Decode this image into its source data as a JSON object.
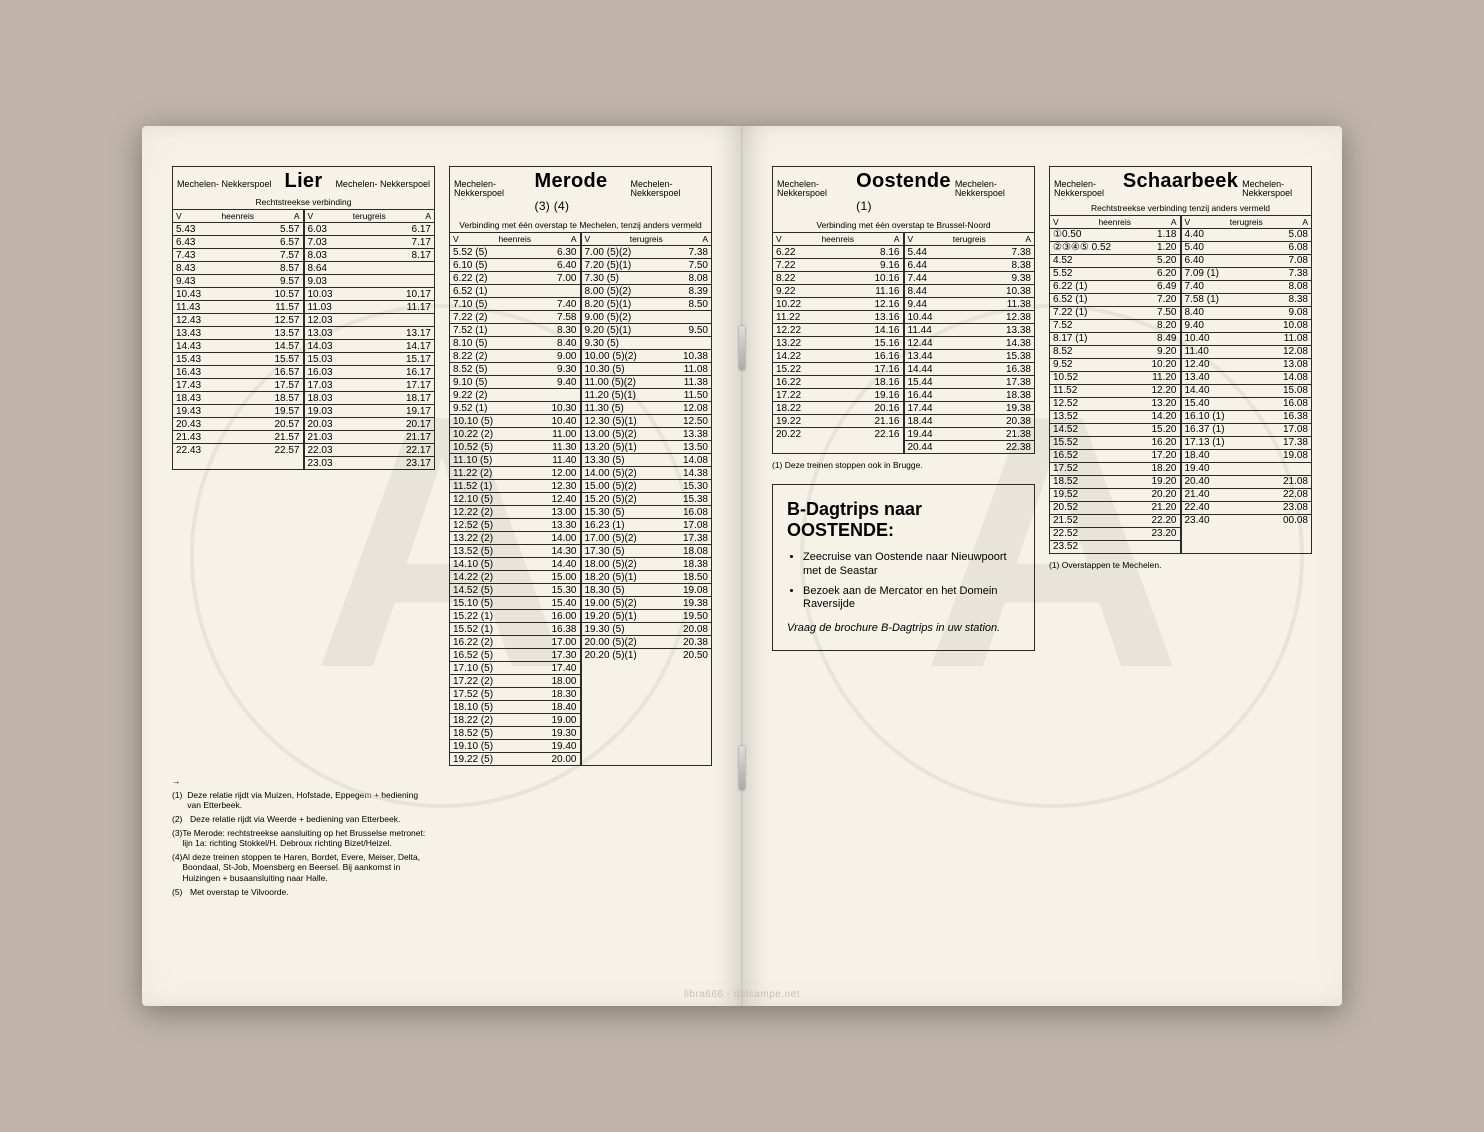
{
  "colors": {
    "page_bg": "#f6f2e8",
    "table_bg": "#bfb4a7",
    "ink": "#2a2a2a",
    "watermark": "#dcd7cc"
  },
  "typography": {
    "dest_font_size_pt": 20,
    "station_font_size_pt": 9,
    "subhead_font_size_pt": 8.5,
    "cell_font_size_pt": 10,
    "footnote_font_size_pt": 8.5,
    "promo_title_pt": 18,
    "promo_body_pt": 11
  },
  "station_label": "Mechelen-\nNekkerspoel",
  "labels": {
    "V": "V",
    "A": "A",
    "heen": "heenreis",
    "terug": "terugreis"
  },
  "watermark_letter": "A",
  "copyright": "libra666 - delcampe.net",
  "tables": {
    "lier": {
      "dest": "Lier",
      "suffix": "",
      "subhead": "Rechtstreekse verbinding",
      "heen": [
        [
          "5.43",
          "5.57"
        ],
        [
          "6.43",
          "6.57"
        ],
        [
          "7.43",
          "7.57"
        ],
        [
          "8.43",
          "8.57"
        ],
        [
          "9.43",
          "9.57"
        ],
        [
          "10.43",
          "10.57"
        ],
        [
          "11.43",
          "11.57"
        ],
        [
          "12.43",
          "12.57"
        ],
        [
          "13.43",
          "13.57"
        ],
        [
          "14.43",
          "14.57"
        ],
        [
          "15.43",
          "15.57"
        ],
        [
          "16.43",
          "16.57"
        ],
        [
          "17.43",
          "17.57"
        ],
        [
          "18.43",
          "18.57"
        ],
        [
          "19.43",
          "19.57"
        ],
        [
          "20.43",
          "20.57"
        ],
        [
          "21.43",
          "21.57"
        ],
        [
          "22.43",
          "22.57"
        ]
      ],
      "terug": [
        [
          "6.03",
          "6.17"
        ],
        [
          "7.03",
          "7.17"
        ],
        [
          "8.03",
          "8.17"
        ],
        [
          "8.64",
          "",
          ""
        ],
        [
          "9.03",
          "",
          ""
        ],
        [
          "10.03",
          "10.17"
        ],
        [
          "11.03",
          "11.17"
        ],
        [
          "12.03",
          "",
          ""
        ],
        [
          "13.03",
          "13.17"
        ],
        [
          "14.03",
          "14.17"
        ],
        [
          "15.03",
          "15.17"
        ],
        [
          "16.03",
          "16.17"
        ],
        [
          "17.03",
          "17.17"
        ],
        [
          "18.03",
          "18.17"
        ],
        [
          "19.03",
          "19.17"
        ],
        [
          "20.03",
          "20.17"
        ],
        [
          "21.03",
          "21.17"
        ],
        [
          "22.03",
          "22.17"
        ],
        [
          "23.03",
          "23.17"
        ]
      ]
    },
    "merode": {
      "dest": "Merode",
      "suffix": "(3) (4)",
      "subhead": "Verbinding met één overstap te Mechelen, tenzij anders vermeld",
      "heen": [
        [
          "5.52 (5)",
          "6.30"
        ],
        [
          "6.10 (5)",
          "6.40"
        ],
        [
          "6.22 (2)",
          "7.00"
        ],
        [
          "6.52 (1)",
          "",
          ""
        ],
        [
          "7.10 (5)",
          "7.40"
        ],
        [
          "7.22 (2)",
          "7.58"
        ],
        [
          "7.52 (1)",
          "8.30"
        ],
        [
          "8.10 (5)",
          "8.40"
        ],
        [
          "8.22 (2)",
          "9.00"
        ],
        [
          "8.52 (5)",
          "9.30"
        ],
        [
          "9.10 (5)",
          "9.40"
        ],
        [
          "9.22 (2)",
          "",
          ""
        ],
        [
          "9.52 (1)",
          "10.30"
        ],
        [
          "10.10 (5)",
          "10.40"
        ],
        [
          "10.22 (2)",
          "11.00"
        ],
        [
          "10.52 (5)",
          "11.30"
        ],
        [
          "11.10 (5)",
          "11.40"
        ],
        [
          "11.22 (2)",
          "12.00"
        ],
        [
          "11.52 (1)",
          "12.30"
        ],
        [
          "12.10 (5)",
          "12.40"
        ],
        [
          "12.22 (2)",
          "13.00"
        ],
        [
          "12.52 (5)",
          "13.30"
        ],
        [
          "13.22 (2)",
          "14.00"
        ],
        [
          "13.52 (5)",
          "14.30"
        ],
        [
          "14.10 (5)",
          "14.40"
        ],
        [
          "14.22 (2)",
          "15.00"
        ],
        [
          "14.52 (5)",
          "15.30"
        ],
        [
          "15.10 (5)",
          "15.40"
        ],
        [
          "15.22 (1)",
          "16.00"
        ],
        [
          "15.52 (1)",
          "16.38"
        ],
        [
          "16.22 (2)",
          "17.00"
        ],
        [
          "16.52 (5)",
          "17.30"
        ],
        [
          "17.10 (5)",
          "17.40"
        ],
        [
          "17.22 (2)",
          "18.00"
        ],
        [
          "17.52 (5)",
          "18.30"
        ],
        [
          "18.10 (5)",
          "18.40"
        ],
        [
          "18.22 (2)",
          "19.00"
        ],
        [
          "18.52 (5)",
          "19.30"
        ],
        [
          "19.10 (5)",
          "19.40"
        ],
        [
          "19.22 (5)",
          "20.00"
        ]
      ],
      "terug": [
        [
          "7.00 (5)(2)",
          "7.38"
        ],
        [
          "7.20 (5)(1)",
          "7.50"
        ],
        [
          "7.30 (5)",
          "8.08"
        ],
        [
          "8.00 (5)(2)",
          "8.39"
        ],
        [
          "8.20 (5)(1)",
          "8.50"
        ],
        [
          "9.00 (5)(2)",
          "",
          ""
        ],
        [
          "9.20 (5)(1)",
          "9.50"
        ],
        [
          "9.30 (5)",
          "",
          ""
        ],
        [
          "10.00 (5)(2)",
          "10.38"
        ],
        [
          "10.30 (5)",
          "11.08"
        ],
        [
          "11.00 (5)(2)",
          "11.38"
        ],
        [
          "11.20 (5)(1)",
          "11.50"
        ],
        [
          "11.30 (5)",
          "12.08"
        ],
        [
          "12.30 (5)(1)",
          "12.50"
        ],
        [
          "13.00 (5)(2)",
          "13.38"
        ],
        [
          "13.20 (5)(1)",
          "13.50"
        ],
        [
          "13.30 (5)",
          "14.08"
        ],
        [
          "14.00 (5)(2)",
          "14.38"
        ],
        [
          "15.00 (5)(2)",
          "15.30"
        ],
        [
          "15.20 (5)(2)",
          "15.38"
        ],
        [
          "15.30 (5)",
          "16.08"
        ],
        [
          "16.23 (1)",
          "17.08"
        ],
        [
          "17.00 (5)(2)",
          "17.38"
        ],
        [
          "17.30 (5)",
          "18.08"
        ],
        [
          "18.00 (5)(2)",
          "18.38"
        ],
        [
          "18.20 (5)(1)",
          "18.50"
        ],
        [
          "18.30 (5)",
          "19.08"
        ],
        [
          "19.00 (5)(2)",
          "19.38"
        ],
        [
          "19.20 (5)(1)",
          "19.50"
        ],
        [
          "19.30 (5)",
          "20.08"
        ],
        [
          "20.00 (5)(2)",
          "20.38"
        ],
        [
          "20.20 (5)(1)",
          "20.50"
        ]
      ]
    },
    "oostende": {
      "dest": "Oostende",
      "suffix": "(1)",
      "subhead": "Verbinding met één overstap te Brussel-Noord",
      "heen": [
        [
          "6.22",
          "8.16"
        ],
        [
          "7.22",
          "9.16"
        ],
        [
          "8.22",
          "10.16"
        ],
        [
          "9.22",
          "11.16"
        ],
        [
          "10.22",
          "12.16"
        ],
        [
          "11.22",
          "13.16"
        ],
        [
          "12.22",
          "14.16"
        ],
        [
          "13.22",
          "15.16"
        ],
        [
          "14.22",
          "16.16"
        ],
        [
          "15.22",
          "17.16"
        ],
        [
          "16.22",
          "18.16"
        ],
        [
          "17.22",
          "19.16"
        ],
        [
          "18.22",
          "20.16"
        ],
        [
          "19.22",
          "21.16"
        ],
        [
          "20.22",
          "22.16"
        ]
      ],
      "terug": [
        [
          "5.44",
          "7.38"
        ],
        [
          "6.44",
          "8.38"
        ],
        [
          "7.44",
          "9.38"
        ],
        [
          "8.44",
          "10.38"
        ],
        [
          "9.44",
          "11.38"
        ],
        [
          "10.44",
          "12.38"
        ],
        [
          "11.44",
          "13.38"
        ],
        [
          "12.44",
          "14.38"
        ],
        [
          "13.44",
          "15.38"
        ],
        [
          "14.44",
          "16.38"
        ],
        [
          "15.44",
          "17.38"
        ],
        [
          "16.44",
          "18.38"
        ],
        [
          "17.44",
          "19.38"
        ],
        [
          "18.44",
          "20.38"
        ],
        [
          "19.44",
          "21.38"
        ],
        [
          "20.44",
          "22.38"
        ]
      ],
      "note": "(1) Deze treinen stoppen ook in Brugge."
    },
    "schaarbeek": {
      "dest": "Schaarbeek",
      "suffix": "",
      "subhead": "Rechtstreekse verbinding tenzij anders vermeld",
      "heen": [
        [
          "①0.50",
          "1.18"
        ],
        [
          "②③④⑤ 0.52",
          "1.20"
        ],
        [
          "4.52",
          "5.20"
        ],
        [
          "5.52",
          "6.20"
        ],
        [
          "6.22 (1)",
          "6.49"
        ],
        [
          "6.52 (1)",
          "7.20"
        ],
        [
          "7.22 (1)",
          "7.50"
        ],
        [
          "7.52",
          "8.20"
        ],
        [
          "8.17 (1)",
          "8.49"
        ],
        [
          "8.52",
          "9.20"
        ],
        [
          "9.52",
          "10.20"
        ],
        [
          "10.52",
          "11.20"
        ],
        [
          "11.52",
          "12.20"
        ],
        [
          "12.52",
          "13.20"
        ],
        [
          "13.52",
          "14.20"
        ],
        [
          "14.52",
          "15.20"
        ],
        [
          "15.52",
          "16.20"
        ],
        [
          "16.52",
          "17.20"
        ],
        [
          "17.52",
          "18.20"
        ],
        [
          "18.52",
          "19.20"
        ],
        [
          "19.52",
          "20.20"
        ],
        [
          "20.52",
          "21.20"
        ],
        [
          "21.52",
          "22.20"
        ],
        [
          "22.52",
          "23.20"
        ],
        [
          "23.52",
          ""
        ]
      ],
      "terug": [
        [
          "4.40",
          "5.08"
        ],
        [
          "5.40",
          "6.08"
        ],
        [
          "6.40",
          "7.08"
        ],
        [
          "7.09 (1)",
          "7.38"
        ],
        [
          "7.40",
          "8.08"
        ],
        [
          "7.58 (1)",
          "8.38"
        ],
        [
          "8.40",
          "9.08"
        ],
        [
          "9.40",
          "10.08"
        ],
        [
          "10.40",
          "11.08"
        ],
        [
          "11.40",
          "12.08"
        ],
        [
          "12.40",
          "13.08"
        ],
        [
          "13.40",
          "14.08"
        ],
        [
          "14.40",
          "15.08"
        ],
        [
          "15.40",
          "16.08"
        ],
        [
          "16.10 (1)",
          "16.38"
        ],
        [
          "16.37 (1)",
          "17.08"
        ],
        [
          "17.13 (1)",
          "17.38"
        ],
        [
          "18.40",
          "19.08"
        ],
        [
          "19.40",
          "",
          ""
        ],
        [
          "20.40",
          "21.08"
        ],
        [
          "21.40",
          "22.08"
        ],
        [
          "22.40",
          "23.08"
        ],
        [
          "23.40",
          "00.08"
        ]
      ],
      "note": "(1) Overstappen te Mechelen."
    }
  },
  "footnotes": [
    {
      "n": "→",
      "t": ""
    },
    {
      "n": "(1)",
      "t": "Deze relatie rijdt via Muizen, Hofstade, Eppegem + bediening van Etterbeek."
    },
    {
      "n": "(2)",
      "t": "Deze relatie rijdt via Weerde + bediening van Etterbeek."
    },
    {
      "n": "(3)",
      "t": "Te Merode: rechtstreekse aansluiting op het Brusselse metronet: lijn 1a: richting Stokkel/H. Debroux richting Bizet/Heizel."
    },
    {
      "n": "(4)",
      "t": "Al deze treinen stoppen te Haren, Bordet, Evere, Meiser, Delta, Boondaal, St-Job, Moensberg en Beersel. Bij aankomst in Huizingen + busaansluiting naar Halle."
    },
    {
      "n": "(5)",
      "t": "Met overstap te Vilvoorde."
    }
  ],
  "promo": {
    "title_line1": "B-Dagtrips naar",
    "title_line2": "OOSTENDE:",
    "bullets": [
      "Zeecruise van Oostende naar Nieuwpoort met de Seastar",
      "Bezoek aan de Mercator en het Domein Raversijde"
    ],
    "ask": "Vraag de brochure B-Dagtrips in uw station."
  }
}
